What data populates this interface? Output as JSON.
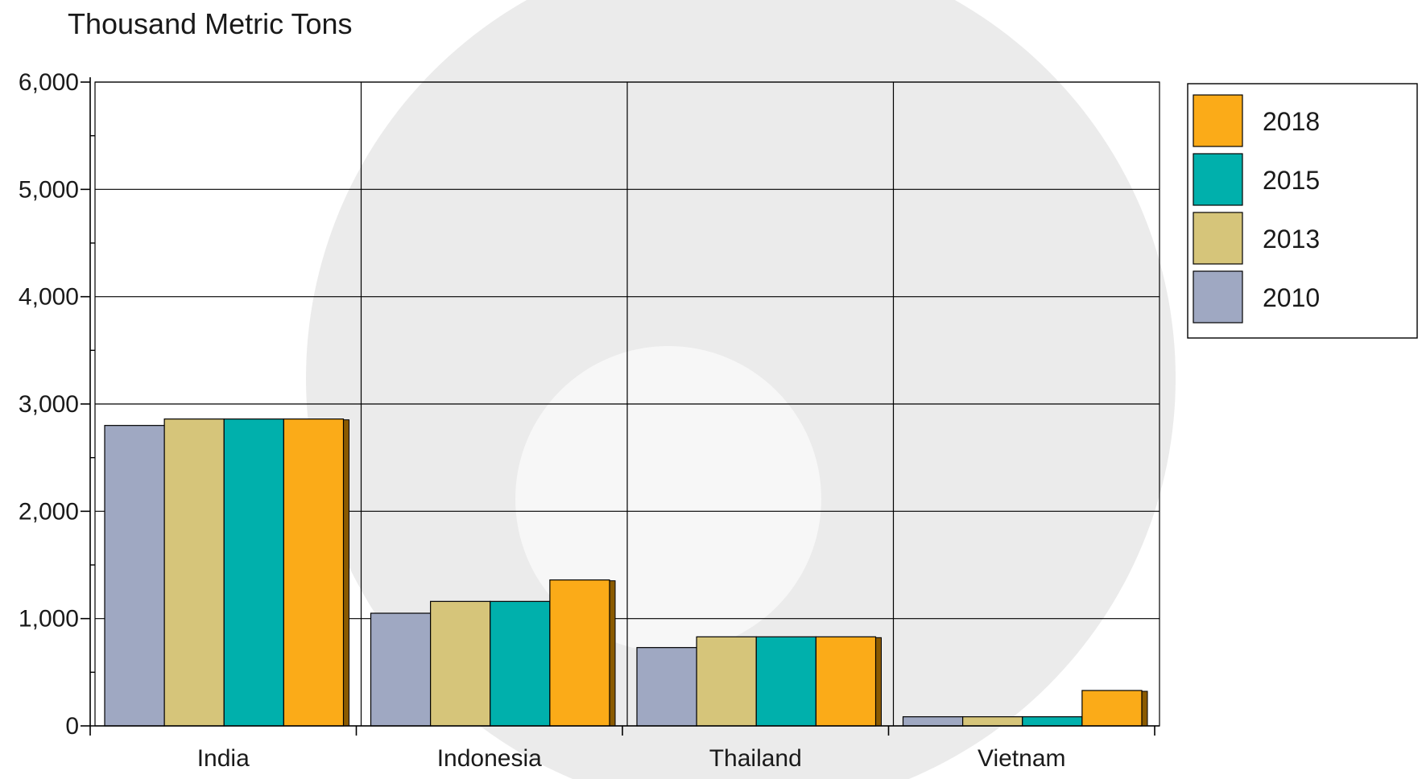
{
  "chart_data": {
    "type": "bar",
    "title": "Thousand Metric Tons",
    "xlabel": "",
    "ylabel": "",
    "ylim": [
      0,
      6000
    ],
    "yticks": [
      0,
      1000,
      2000,
      3000,
      4000,
      5000,
      6000
    ],
    "ytick_labels": [
      "0",
      "1,000",
      "2,000",
      "3,000",
      "4,000",
      "5,000",
      "6,000"
    ],
    "categories": [
      "India",
      "Indonesia",
      "Thailand",
      "Vietnam"
    ],
    "series": [
      {
        "name": "2010",
        "color": "#9fa8c2",
        "values": [
          2800,
          1050,
          730,
          85
        ]
      },
      {
        "name": "2013",
        "color": "#d6c57a",
        "values": [
          2860,
          1160,
          830,
          85
        ]
      },
      {
        "name": "2015",
        "color": "#00b0ac",
        "values": [
          2860,
          1160,
          830,
          85
        ]
      },
      {
        "name": "2018",
        "color": "#fbab18",
        "values": [
          2860,
          1360,
          830,
          330
        ]
      }
    ],
    "legend_order": [
      "2018",
      "2015",
      "2013",
      "2010"
    ],
    "legend_position": "top-right",
    "grid": true
  }
}
